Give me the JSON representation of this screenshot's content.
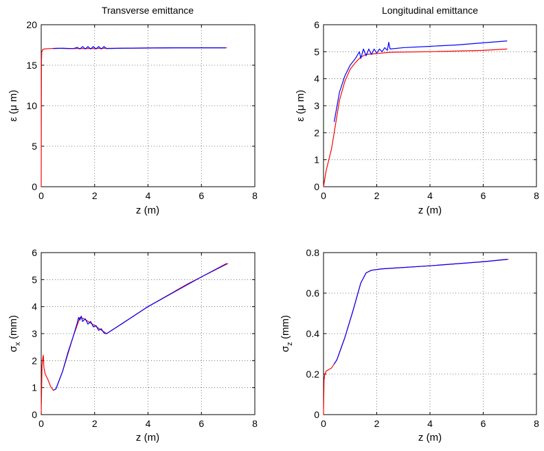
{
  "chart_data": [
    {
      "type": "line",
      "title": "Transverse emittance",
      "xlabel": "z (m)",
      "ylabel": "ε (μ m)",
      "xlim": [
        0,
        8
      ],
      "ylim": [
        0,
        20
      ],
      "xticks": [
        "0",
        "2",
        "4",
        "6",
        "8"
      ],
      "yticks": [
        "0",
        "5",
        "10",
        "15",
        "20"
      ],
      "grid": true,
      "series": [
        {
          "color": "#ff0000",
          "points": [
            [
              0,
              0
            ],
            [
              0.01,
              15.5
            ],
            [
              0.02,
              16.6
            ],
            [
              0.05,
              16.9
            ],
            [
              0.1,
              17.0
            ],
            [
              0.3,
              17.05
            ],
            [
              0.6,
              17.1
            ],
            [
              1,
              17.05
            ],
            [
              3,
              17.1
            ],
            [
              5,
              17.15
            ],
            [
              6.95,
              17.15
            ]
          ]
        },
        {
          "color": "#0000ff",
          "points": [
            [
              0.45,
              17.05
            ],
            [
              0.8,
              17.1
            ],
            [
              1.2,
              17.05
            ],
            [
              1.35,
              17.2
            ],
            [
              1.45,
              17.0
            ],
            [
              1.55,
              17.3
            ],
            [
              1.65,
              17.0
            ],
            [
              1.75,
              17.3
            ],
            [
              1.85,
              17.0
            ],
            [
              1.95,
              17.3
            ],
            [
              2.05,
              17.0
            ],
            [
              2.15,
              17.3
            ],
            [
              2.25,
              17.0
            ],
            [
              2.35,
              17.3
            ],
            [
              2.45,
              17.05
            ],
            [
              3,
              17.1
            ],
            [
              5,
              17.15
            ],
            [
              6.9,
              17.15
            ]
          ]
        }
      ]
    },
    {
      "type": "line",
      "title": "Longitudinal emittance",
      "xlabel": "z (m)",
      "ylabel": "ε (μ m)",
      "xlim": [
        0,
        8
      ],
      "ylim": [
        0,
        6
      ],
      "xticks": [
        "0",
        "2",
        "4",
        "6",
        "8"
      ],
      "yticks": [
        "0",
        "1",
        "2",
        "3",
        "4",
        "5",
        "6"
      ],
      "grid": true,
      "series": [
        {
          "color": "#ff0000",
          "points": [
            [
              0,
              0
            ],
            [
              0.1,
              0.6
            ],
            [
              0.3,
              1.4
            ],
            [
              0.45,
              2.3
            ],
            [
              0.6,
              3.2
            ],
            [
              0.8,
              3.9
            ],
            [
              1.0,
              4.35
            ],
            [
              1.2,
              4.6
            ],
            [
              1.4,
              4.8
            ],
            [
              1.6,
              4.9
            ],
            [
              2.0,
              4.93
            ],
            [
              2.5,
              4.98
            ],
            [
              4,
              5.0
            ],
            [
              6,
              5.05
            ],
            [
              6.9,
              5.1
            ]
          ]
        },
        {
          "color": "#0000ff",
          "points": [
            [
              0.4,
              2.4
            ],
            [
              0.5,
              2.95
            ],
            [
              0.6,
              3.5
            ],
            [
              0.8,
              4.1
            ],
            [
              1.0,
              4.5
            ],
            [
              1.2,
              4.75
            ],
            [
              1.35,
              5.0
            ],
            [
              1.4,
              4.75
            ],
            [
              1.5,
              5.1
            ],
            [
              1.6,
              4.85
            ],
            [
              1.7,
              5.1
            ],
            [
              1.8,
              4.9
            ],
            [
              1.9,
              5.1
            ],
            [
              2.0,
              4.95
            ],
            [
              2.1,
              5.1
            ],
            [
              2.2,
              5.0
            ],
            [
              2.3,
              5.15
            ],
            [
              2.4,
              5.05
            ],
            [
              2.45,
              5.35
            ],
            [
              2.5,
              5.1
            ],
            [
              3,
              5.15
            ],
            [
              4,
              5.2
            ],
            [
              5,
              5.25
            ],
            [
              6,
              5.33
            ],
            [
              6.9,
              5.4
            ]
          ]
        }
      ]
    },
    {
      "type": "line",
      "title": "",
      "xlabel": "z (m)",
      "ylabel": "σ",
      "ylabel_sub": "x",
      "ylabel_unit": " (mm)",
      "xlim": [
        0,
        8
      ],
      "ylim": [
        0,
        6
      ],
      "xticks": [
        "0",
        "2",
        "4",
        "6",
        "8"
      ],
      "yticks": [
        "0",
        "1",
        "2",
        "3",
        "4",
        "5",
        "6"
      ],
      "grid": true,
      "series": [
        {
          "color": "#ff0000",
          "points": [
            [
              0,
              0.05
            ],
            [
              0.03,
              1.8
            ],
            [
              0.06,
              2.1
            ],
            [
              0.08,
              2.2
            ],
            [
              0.1,
              1.75
            ],
            [
              0.15,
              1.5
            ],
            [
              0.25,
              1.3
            ],
            [
              0.35,
              1.05
            ],
            [
              0.45,
              0.9
            ],
            [
              0.55,
              0.95
            ],
            [
              0.8,
              1.6
            ],
            [
              1.2,
              2.9
            ],
            [
              1.45,
              3.6
            ],
            [
              1.6,
              3.55
            ],
            [
              2.0,
              3.3
            ],
            [
              2.45,
              3.0
            ],
            [
              4,
              4.0
            ],
            [
              5.5,
              4.85
            ],
            [
              7.0,
              5.6
            ]
          ]
        },
        {
          "color": "#0000ff",
          "points": [
            [
              0.45,
              0.9
            ],
            [
              0.55,
              0.95
            ],
            [
              0.8,
              1.6
            ],
            [
              1.0,
              2.3
            ],
            [
              1.2,
              2.9
            ],
            [
              1.35,
              3.4
            ],
            [
              1.4,
              3.6
            ],
            [
              1.45,
              3.5
            ],
            [
              1.5,
              3.65
            ],
            [
              1.55,
              3.45
            ],
            [
              1.65,
              3.55
            ],
            [
              1.75,
              3.35
            ],
            [
              1.85,
              3.45
            ],
            [
              1.95,
              3.25
            ],
            [
              2.05,
              3.3
            ],
            [
              2.15,
              3.12
            ],
            [
              2.25,
              3.18
            ],
            [
              2.35,
              3.02
            ],
            [
              2.45,
              3.0
            ],
            [
              3,
              3.35
            ],
            [
              4,
              4.0
            ],
            [
              5,
              4.55
            ],
            [
              6,
              5.1
            ],
            [
              6.95,
              5.6
            ]
          ]
        }
      ]
    },
    {
      "type": "line",
      "title": "",
      "xlabel": "z (m)",
      "ylabel": "σ",
      "ylabel_sub": "z",
      "ylabel_unit": " (mm)",
      "xlim": [
        0,
        8
      ],
      "ylim": [
        0,
        0.8
      ],
      "xticks": [
        "0",
        "2",
        "4",
        "6",
        "8"
      ],
      "yticks": [
        "0",
        "0.2",
        "0.4",
        "0.6",
        "0.8"
      ],
      "grid": true,
      "series": [
        {
          "color": "#ff0000",
          "points": [
            [
              0,
              0.0
            ],
            [
              0.02,
              0.17
            ],
            [
              0.05,
              0.2
            ],
            [
              0.1,
              0.215
            ],
            [
              0.3,
              0.23
            ],
            [
              0.5,
              0.27
            ],
            [
              0.8,
              0.38
            ],
            [
              1.1,
              0.51
            ],
            [
              1.4,
              0.65
            ],
            [
              1.6,
              0.7
            ],
            [
              1.8,
              0.713
            ],
            [
              2.2,
              0.72
            ],
            [
              4,
              0.735
            ],
            [
              6,
              0.755
            ],
            [
              6.95,
              0.767
            ]
          ]
        },
        {
          "color": "#0000ff",
          "points": [
            [
              0.4,
              0.25
            ],
            [
              0.5,
              0.27
            ],
            [
              0.8,
              0.38
            ],
            [
              1.1,
              0.51
            ],
            [
              1.4,
              0.65
            ],
            [
              1.6,
              0.7
            ],
            [
              1.8,
              0.713
            ],
            [
              2.2,
              0.72
            ],
            [
              4,
              0.735
            ],
            [
              6,
              0.755
            ],
            [
              6.9,
              0.767
            ]
          ]
        }
      ]
    }
  ]
}
